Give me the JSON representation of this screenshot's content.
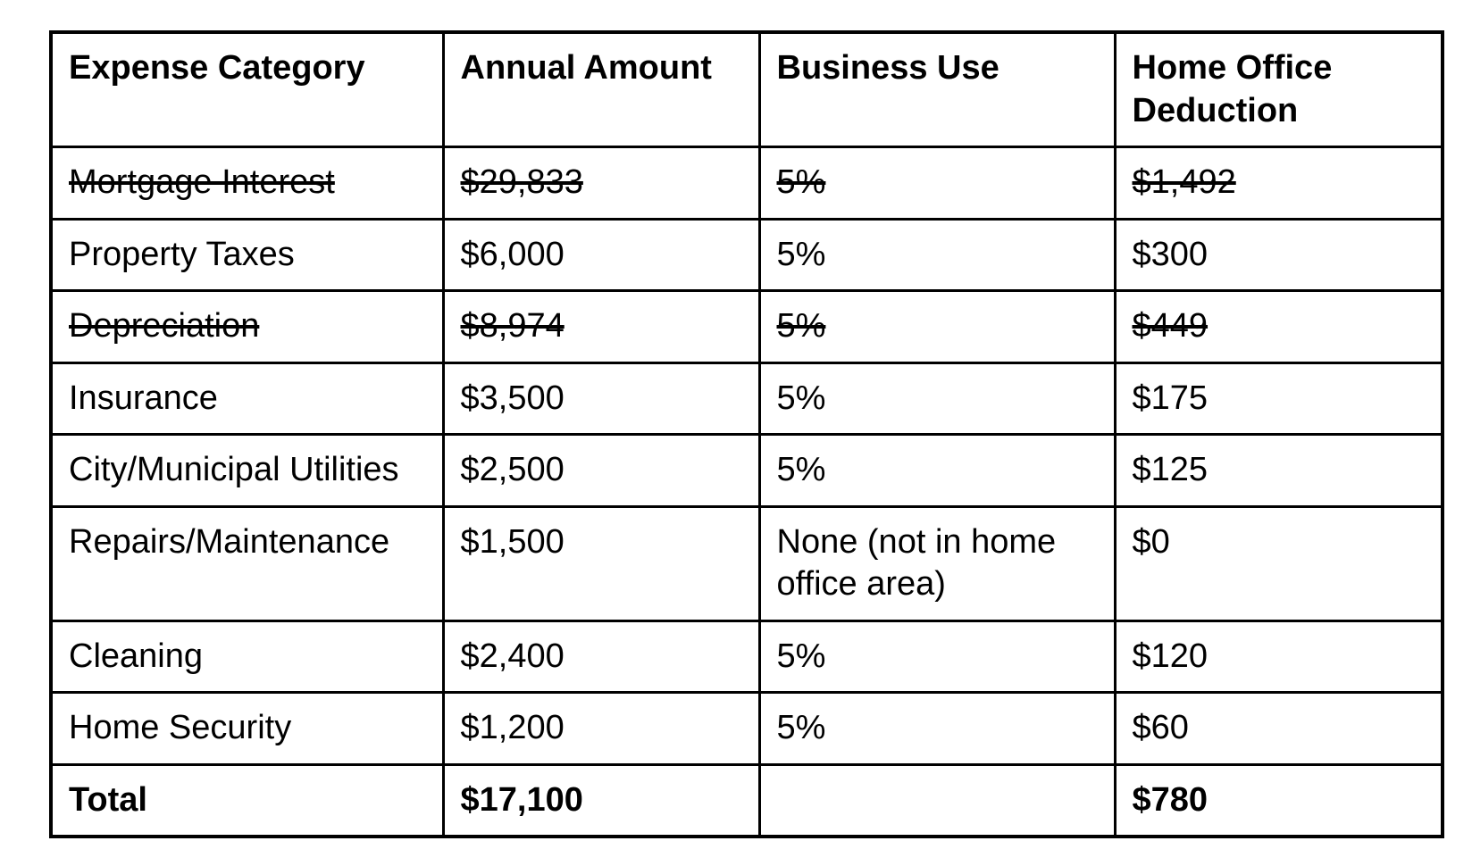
{
  "document": {
    "type": "expense-deduction-table"
  },
  "colors": {
    "background": "#ffffff",
    "text": "#000000",
    "border": "#000000"
  },
  "table": {
    "columns": [
      "Expense Category",
      "Annual Amount",
      "Business Use",
      "Home Office Deduction"
    ],
    "rows": [
      {
        "category": "Mortgage Interest",
        "annual_amount": "$29,833",
        "business_use": "5%",
        "deduction": "$1,492",
        "struck": true,
        "bold": false
      },
      {
        "category": "Property Taxes",
        "annual_amount": "$6,000",
        "business_use": "5%",
        "deduction": "$300",
        "struck": false,
        "bold": false
      },
      {
        "category": "Depreciation",
        "annual_amount": "$8,974",
        "business_use": "5%",
        "deduction": "$449",
        "struck": true,
        "bold": false
      },
      {
        "category": "Insurance",
        "annual_amount": "$3,500",
        "business_use": "5%",
        "deduction": "$175",
        "struck": false,
        "bold": false
      },
      {
        "category": "City/Municipal Utilities",
        "annual_amount": "$2,500",
        "business_use": "5%",
        "deduction": "$125",
        "struck": false,
        "bold": false
      },
      {
        "category": "Repairs/Maintenance",
        "annual_amount": "$1,500",
        "business_use": "None (not in home office area)",
        "deduction": "$0",
        "struck": false,
        "bold": false
      },
      {
        "category": "Cleaning",
        "annual_amount": "$2,400",
        "business_use": "5%",
        "deduction": "$120",
        "struck": false,
        "bold": false
      },
      {
        "category": "Home Security",
        "annual_amount": "$1,200",
        "business_use": "5%",
        "deduction": "$60",
        "struck": false,
        "bold": false
      },
      {
        "category": "Total",
        "annual_amount": "$17,100",
        "business_use": "",
        "deduction": "$780",
        "struck": false,
        "bold": true
      }
    ]
  }
}
